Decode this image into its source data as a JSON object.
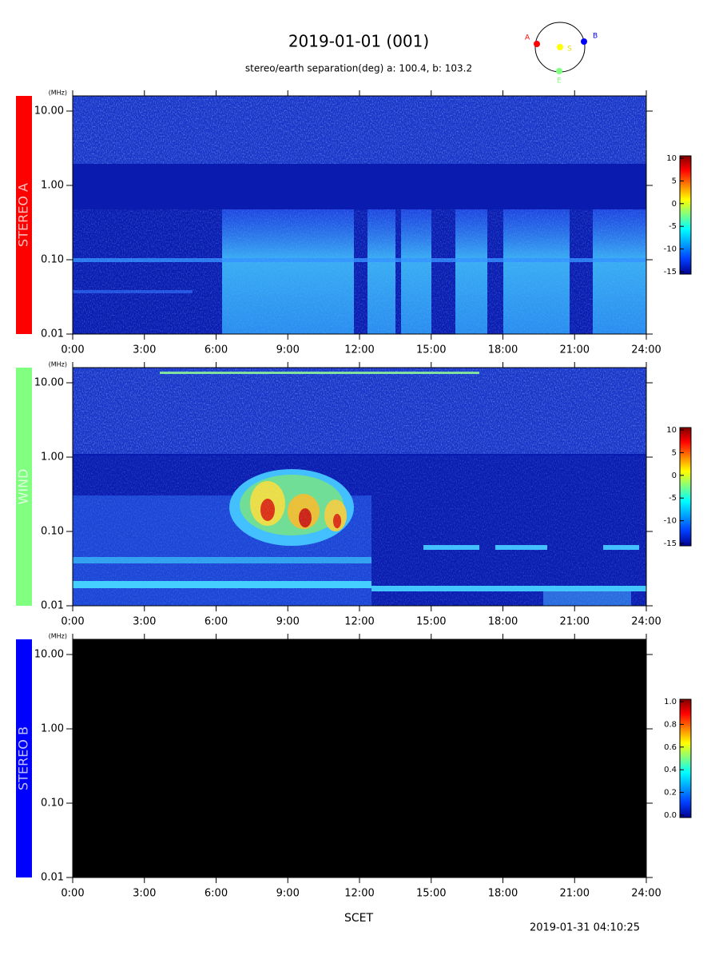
{
  "header": {
    "title": "2019-01-01 (001)",
    "subtitle": "stereo/earth separation(deg) a: 100.4, b: 103.2"
  },
  "orbit": {
    "a": "A",
    "b": "B",
    "sun": "S",
    "earth": "E"
  },
  "footer": {
    "xlabel": "SCET",
    "timestamp": "2019-01-31 04:10:25"
  },
  "chart_data": [
    {
      "type": "spectrogram",
      "label": "STEREO A",
      "label_color": "#ff0000",
      "yunit": "(MHz)",
      "log_y": true,
      "ylim": [
        0.01,
        16
      ],
      "yticks": [
        0.01,
        {
          "value": 0.1,
          "label": "0.10"
        },
        {
          "value": 1,
          "label": "1.00"
        },
        {
          "value": 10,
          "label": "10.00"
        }
      ],
      "xlim": [
        0,
        24
      ],
      "xticks": [
        {
          "value": 0,
          "label": "0:00"
        },
        {
          "value": 3,
          "label": "3:00"
        },
        {
          "value": 6,
          "label": "6:00"
        },
        {
          "value": 9,
          "label": "9:00"
        },
        {
          "value": 12,
          "label": "12:00"
        },
        {
          "value": 15,
          "label": "15:00"
        },
        {
          "value": 18,
          "label": "18:00"
        },
        {
          "value": 21,
          "label": "21:00"
        },
        {
          "value": 24,
          "label": "24:00"
        }
      ],
      "clim": [
        -15,
        10
      ],
      "cticks": [
        -15,
        -10,
        -5,
        0,
        5,
        10
      ]
    },
    {
      "type": "spectrogram",
      "label": "WIND",
      "label_color": "#80ff80",
      "yunit": "(MHz)",
      "log_y": true,
      "ylim": [
        0.01,
        16
      ],
      "yticks": [
        0.01,
        {
          "value": 0.1,
          "label": "0.10"
        },
        {
          "value": 1,
          "label": "1.00"
        },
        {
          "value": 10,
          "label": "10.00"
        }
      ],
      "xlim": [
        0,
        24
      ],
      "xticks": [
        {
          "value": 0,
          "label": "0:00"
        },
        {
          "value": 3,
          "label": "3:00"
        },
        {
          "value": 6,
          "label": "6:00"
        },
        {
          "value": 9,
          "label": "9:00"
        },
        {
          "value": 12,
          "label": "12:00"
        },
        {
          "value": 15,
          "label": "15:00"
        },
        {
          "value": 18,
          "label": "18:00"
        },
        {
          "value": 21,
          "label": "21:00"
        },
        {
          "value": 24,
          "label": "24:00"
        }
      ],
      "clim": [
        -15,
        10
      ],
      "cticks": [
        -15,
        -10,
        -5,
        0,
        5,
        10
      ]
    },
    {
      "type": "spectrogram",
      "label": "STEREO B",
      "label_color": "#0000ff",
      "yunit": "(MHz)",
      "log_y": true,
      "ylim": [
        0.01,
        16
      ],
      "yticks": [
        0.01,
        {
          "value": 0.1,
          "label": "0.10"
        },
        {
          "value": 1,
          "label": "1.00"
        },
        {
          "value": 10,
          "label": "10.00"
        }
      ],
      "xlim": [
        0,
        24
      ],
      "xticks": [
        {
          "value": 0,
          "label": "0:00"
        },
        {
          "value": 3,
          "label": "3:00"
        },
        {
          "value": 6,
          "label": "6:00"
        },
        {
          "value": 9,
          "label": "9:00"
        },
        {
          "value": 12,
          "label": "12:00"
        },
        {
          "value": 15,
          "label": "15:00"
        },
        {
          "value": 18,
          "label": "18:00"
        },
        {
          "value": 21,
          "label": "21:00"
        },
        {
          "value": 24,
          "label": "24:00"
        }
      ],
      "clim": [
        {
          "value": 0,
          "label": "0.0"
        },
        {
          "value": 1,
          "label": "1.0"
        }
      ],
      "cticks": [
        {
          "value": 0,
          "label": "0.0"
        },
        0.2,
        0.4,
        0.6,
        0.8,
        {
          "value": 1,
          "label": "1.0"
        }
      ]
    }
  ]
}
